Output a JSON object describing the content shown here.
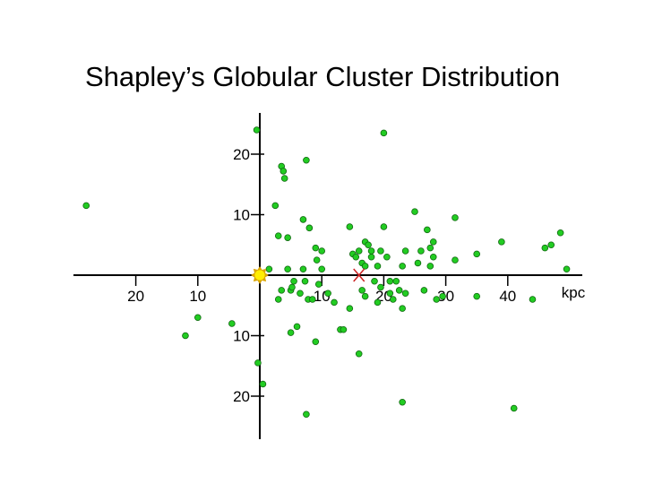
{
  "chart_data": {
    "type": "scatter",
    "title": "Shapley’s Globular Cluster Distribution",
    "x_unit": "kpc",
    "xlim": [
      -28,
      52
    ],
    "ylim": [
      -27,
      27
    ],
    "x_ticks": [
      {
        "value": -20,
        "label": "20"
      },
      {
        "value": -10,
        "label": "10"
      },
      {
        "value": 10,
        "label": "10"
      },
      {
        "value": 20,
        "label": "20"
      },
      {
        "value": 30,
        "label": "30"
      },
      {
        "value": 40,
        "label": "40"
      }
    ],
    "y_ticks": [
      {
        "value": 20,
        "label": "20"
      },
      {
        "value": 10,
        "label": "10"
      },
      {
        "value": -10,
        "label": "10"
      },
      {
        "value": -20,
        "label": "20"
      }
    ],
    "sun": {
      "x": 0,
      "y": 0
    },
    "center_marker": {
      "x": 16,
      "y": 0,
      "symbol": "X"
    },
    "colors": {
      "points": "#22cc22",
      "point_stroke": "#116611",
      "sun_fill": "#ffee00",
      "sun_stroke": "#d9a400",
      "center": "#cc2222",
      "axes": "#000000"
    },
    "points": [
      [
        -28,
        11.5
      ],
      [
        -12,
        -10
      ],
      [
        -10,
        -7
      ],
      [
        -4.5,
        -8
      ],
      [
        -0.5,
        24
      ],
      [
        -0.3,
        -14.5
      ],
      [
        0.5,
        -18
      ],
      [
        1.5,
        1
      ],
      [
        2.5,
        11.5
      ],
      [
        3,
        -4
      ],
      [
        3,
        6.5
      ],
      [
        3.5,
        -2.5
      ],
      [
        3.5,
        18
      ],
      [
        3.8,
        17.2
      ],
      [
        4,
        16
      ],
      [
        4.5,
        6.2
      ],
      [
        4.5,
        1
      ],
      [
        5,
        -2.5
      ],
      [
        5,
        -9.5
      ],
      [
        5.2,
        -2
      ],
      [
        5.5,
        -1
      ],
      [
        6,
        -8.5
      ],
      [
        6.5,
        -3
      ],
      [
        7,
        1
      ],
      [
        7,
        9.2
      ],
      [
        7.3,
        -1
      ],
      [
        7.5,
        19
      ],
      [
        7.5,
        -23
      ],
      [
        7.8,
        -4
      ],
      [
        8,
        7.8
      ],
      [
        8.5,
        -4
      ],
      [
        9,
        -11
      ],
      [
        9,
        4.5
      ],
      [
        9.2,
        2.5
      ],
      [
        9.5,
        -1.5
      ],
      [
        10,
        4
      ],
      [
        10,
        1
      ],
      [
        11,
        -3
      ],
      [
        12,
        -4.5
      ],
      [
        13,
        -9
      ],
      [
        13.5,
        -9
      ],
      [
        14.5,
        -5.5
      ],
      [
        14.5,
        8
      ],
      [
        15,
        3.5
      ],
      [
        15.5,
        3
      ],
      [
        16,
        4
      ],
      [
        16,
        -13
      ],
      [
        16.5,
        2
      ],
      [
        16.5,
        -2.5
      ],
      [
        17,
        -3.5
      ],
      [
        17,
        5.5
      ],
      [
        17,
        1.5
      ],
      [
        17.5,
        5
      ],
      [
        18,
        4
      ],
      [
        18,
        3
      ],
      [
        18.5,
        -1
      ],
      [
        19,
        -4.5
      ],
      [
        19,
        1.5
      ],
      [
        19.5,
        4
      ],
      [
        19.5,
        -2
      ],
      [
        20,
        23.5
      ],
      [
        20,
        8
      ],
      [
        20.5,
        3
      ],
      [
        21,
        -1
      ],
      [
        21,
        -3
      ],
      [
        21.5,
        -4
      ],
      [
        22,
        -1
      ],
      [
        22.5,
        -2.5
      ],
      [
        23,
        1.5
      ],
      [
        23,
        -5.5
      ],
      [
        23,
        -21
      ],
      [
        23.5,
        -3
      ],
      [
        23.5,
        4
      ],
      [
        25,
        10.5
      ],
      [
        25.5,
        2
      ],
      [
        26,
        4
      ],
      [
        26.5,
        -2.5
      ],
      [
        27,
        7.5
      ],
      [
        27.5,
        1.5
      ],
      [
        27.5,
        4.5
      ],
      [
        28,
        3
      ],
      [
        28,
        5.5
      ],
      [
        28.5,
        -4
      ],
      [
        29.5,
        -3.5
      ],
      [
        31.5,
        9.5
      ],
      [
        31.5,
        2.5
      ],
      [
        35,
        3.5
      ],
      [
        35,
        -3.5
      ],
      [
        39,
        5.5
      ],
      [
        41,
        -22
      ],
      [
        44,
        -4
      ],
      [
        46,
        4.5
      ],
      [
        47,
        5
      ],
      [
        48.5,
        7
      ],
      [
        49.5,
        1
      ]
    ]
  }
}
